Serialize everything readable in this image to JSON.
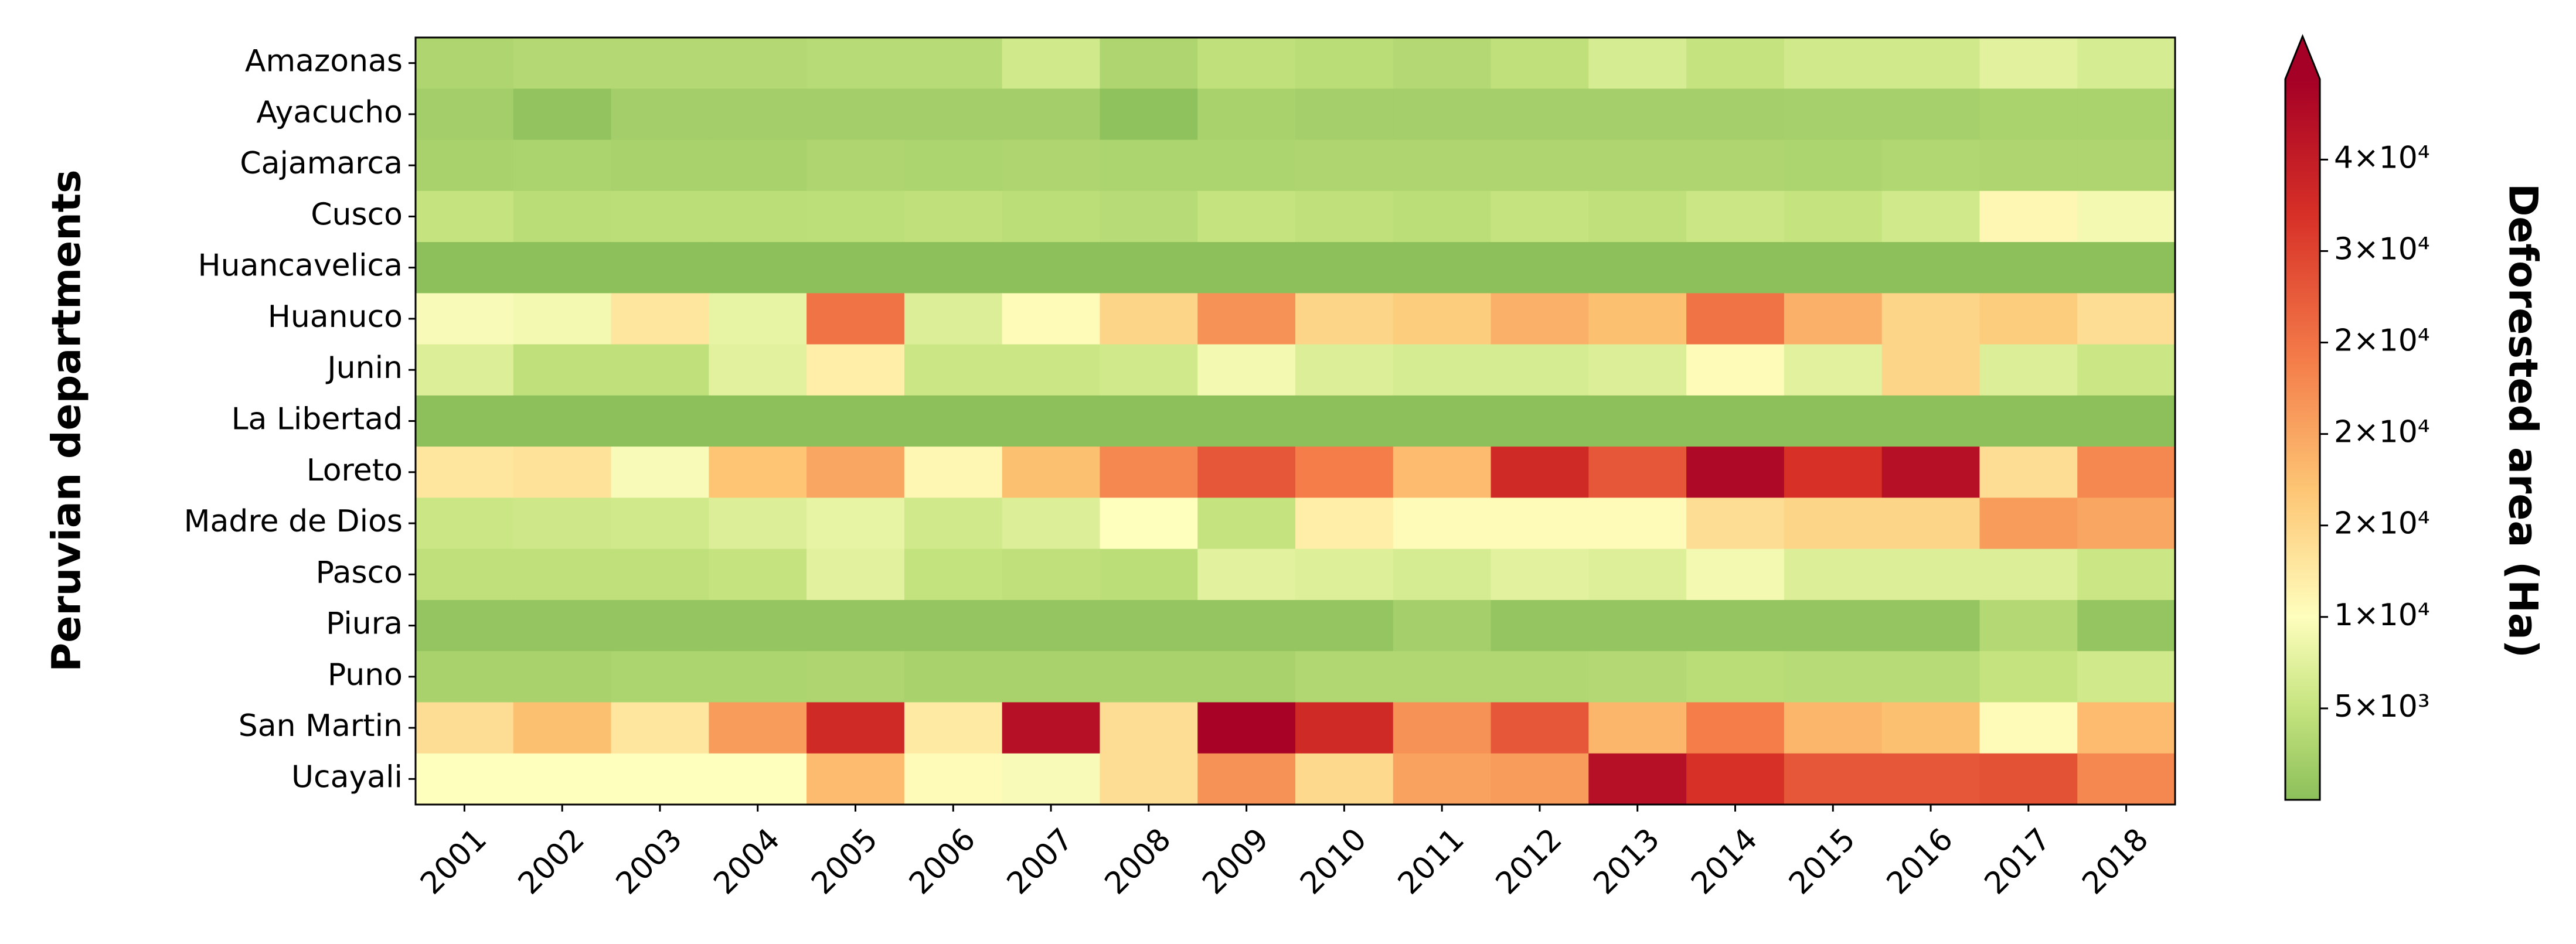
{
  "chart_data": {
    "type": "heatmap",
    "y_label": "Peruvian departments",
    "colorbar_label": "Deforested area (Ha)",
    "categories": [
      "2001",
      "2002",
      "2003",
      "2004",
      "2005",
      "2006",
      "2007",
      "2008",
      "2009",
      "2010",
      "2011",
      "2012",
      "2013",
      "2014",
      "2015",
      "2016",
      "2017",
      "2018"
    ],
    "rows": [
      "Amazonas",
      "Ayacucho",
      "Cajamarca",
      "Cusco",
      "Huancavelica",
      "Huanuco",
      "Junin",
      "La Libertad",
      "Loreto",
      "Madre de Dios",
      "Pasco",
      "Piura",
      "Puno",
      "San Martin",
      "Ucayali"
    ],
    "values": [
      [
        3000,
        3500,
        3500,
        3500,
        3800,
        3800,
        6000,
        3000,
        4500,
        4000,
        3500,
        4500,
        6500,
        5000,
        6000,
        6000,
        7500,
        6500
      ],
      [
        2000,
        500,
        2000,
        2000,
        2000,
        2000,
        2000,
        300,
        2500,
        2200,
        2200,
        2200,
        2200,
        2200,
        2300,
        2300,
        2600,
        2600
      ],
      [
        2500,
        2700,
        2500,
        2500,
        3000,
        2800,
        3000,
        2800,
        2800,
        3000,
        3000,
        3000,
        3000,
        3000,
        2800,
        3200,
        3000,
        3000
      ],
      [
        5000,
        4000,
        4200,
        4200,
        4300,
        4500,
        4200,
        3800,
        5000,
        4500,
        4200,
        5000,
        4500,
        5500,
        5000,
        6000,
        11000,
        9000
      ],
      [
        100,
        100,
        100,
        100,
        100,
        100,
        100,
        100,
        100,
        100,
        100,
        100,
        100,
        100,
        100,
        100,
        100,
        100
      ],
      [
        9500,
        9000,
        13000,
        8000,
        25000,
        7000,
        10500,
        15000,
        22000,
        15000,
        16000,
        19000,
        17500,
        25000,
        19000,
        15000,
        16000,
        14000
      ],
      [
        7000,
        4500,
        4500,
        7500,
        12000,
        5500,
        5500,
        6000,
        9000,
        7000,
        6500,
        6500,
        7000,
        10500,
        7500,
        15000,
        7000,
        5500
      ],
      [
        100,
        100,
        100,
        100,
        100,
        100,
        100,
        100,
        100,
        100,
        100,
        100,
        100,
        100,
        100,
        100,
        100,
        100
      ],
      [
        13000,
        13500,
        9500,
        17000,
        20000,
        11000,
        17500,
        23000,
        28000,
        24000,
        18000,
        33000,
        28000,
        38000,
        32000,
        37000,
        14000,
        23000
      ],
      [
        5500,
        5800,
        6000,
        7000,
        8000,
        6000,
        7000,
        10000,
        5000,
        12000,
        10500,
        10500,
        10500,
        14000,
        15000,
        15000,
        21000,
        20000
      ],
      [
        4500,
        4500,
        4500,
        5000,
        7500,
        4800,
        4500,
        4200,
        7500,
        7200,
        6500,
        7500,
        7200,
        9000,
        7000,
        7000,
        7000,
        5500
      ],
      [
        800,
        800,
        800,
        800,
        800,
        800,
        800,
        800,
        800,
        800,
        2200,
        800,
        800,
        800,
        800,
        800,
        3500,
        800
      ],
      [
        2500,
        2500,
        2800,
        2800,
        3000,
        2500,
        2500,
        2500,
        2500,
        3200,
        3200,
        3200,
        3500,
        4000,
        3800,
        3800,
        5000,
        6000
      ],
      [
        14000,
        17500,
        13000,
        21000,
        33000,
        12500,
        37000,
        14000,
        39000,
        33000,
        22000,
        28000,
        18500,
        24000,
        18500,
        17500,
        10500,
        18000
      ],
      [
        10000,
        10000,
        10000,
        10000,
        18000,
        10500,
        9500,
        14000,
        22000,
        14500,
        20500,
        21000,
        37000,
        32000,
        28000,
        28000,
        28500,
        23000
      ]
    ],
    "clim": [
      0,
      39400
    ],
    "colorscale": [
      [
        0,
        "#8cbf5a"
      ],
      [
        5000,
        "#c5e47f"
      ],
      [
        10000,
        "#fefebd"
      ],
      [
        17000,
        "#fdc574"
      ],
      [
        24000,
        "#f47d4a"
      ],
      [
        32000,
        "#d73027"
      ],
      [
        39400,
        "#a50026"
      ]
    ],
    "cticks": [
      {
        "value": 5000,
        "label": "5×10³"
      },
      {
        "value": 10000,
        "label": "1×10⁴"
      },
      {
        "value": 15000,
        "label": "2×10⁴"
      },
      {
        "value": 20000,
        "label": "2×10⁴"
      },
      {
        "value": 25000,
        "label": "2×10⁴"
      },
      {
        "value": 30000,
        "label": "3×10⁴"
      },
      {
        "value": 35000,
        "label": "4×10⁴"
      }
    ],
    "colorbar_extend": "max"
  }
}
